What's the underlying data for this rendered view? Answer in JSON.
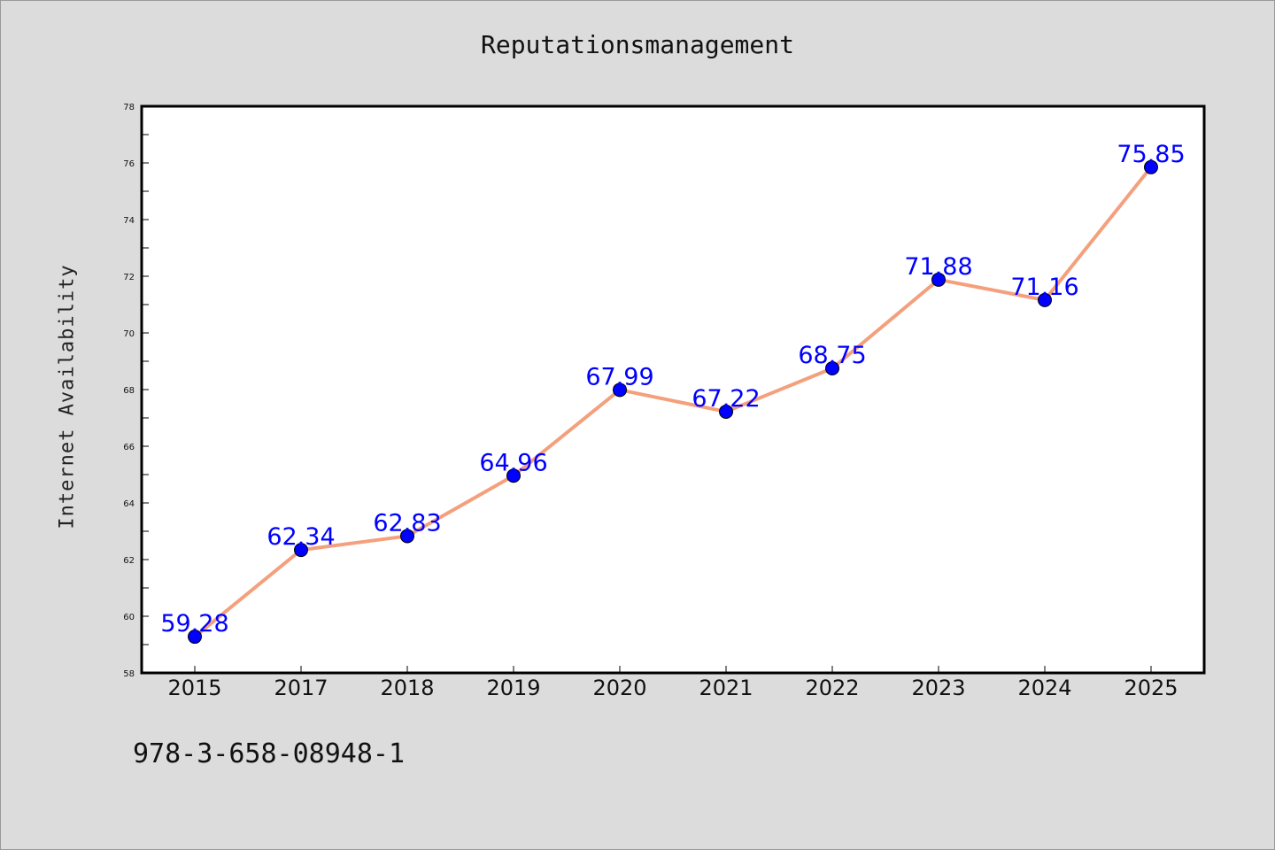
{
  "chart_data": {
    "type": "line",
    "title": "Reputationsmanagement",
    "xlabel": "",
    "ylabel": "Internet Availability",
    "categories": [
      "2015",
      "2017",
      "2018",
      "2019",
      "2020",
      "2021",
      "2022",
      "2023",
      "2024",
      "2025"
    ],
    "values": [
      59.28,
      62.34,
      62.83,
      64.96,
      67.99,
      67.22,
      68.75,
      71.88,
      71.16,
      75.85
    ],
    "value_labels": [
      "59.28",
      "62.34",
      "62.83",
      "64.96",
      "67.99",
      "67.22",
      "68.75",
      "71.88",
      "71.16",
      "75.85"
    ],
    "ylim": [
      58,
      78
    ],
    "yticks": [
      "58",
      "60",
      "62",
      "64",
      "66",
      "68",
      "70",
      "72",
      "74",
      "76",
      "78"
    ],
    "grid": false,
    "line_color": "#f4a07c",
    "marker_color": "#0000ff",
    "label_color": "#0000ff",
    "background": "#dcdcdc"
  },
  "footnote": "978-3-658-08948-1"
}
